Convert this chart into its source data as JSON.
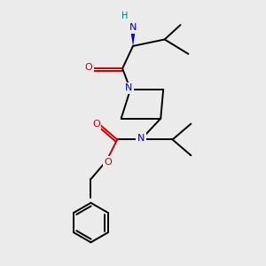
{
  "bg_color": "#ebebeb",
  "bond_color": "#000000",
  "N_color": "#0000cc",
  "O_color": "#cc0000",
  "NH2_H_color": "#008080",
  "NH2_N_color": "#0000cc",
  "line_width": 1.4,
  "figsize": [
    3.0,
    3.0
  ],
  "dpi": 100,
  "xlim": [
    0,
    10
  ],
  "ylim": [
    0,
    10
  ]
}
